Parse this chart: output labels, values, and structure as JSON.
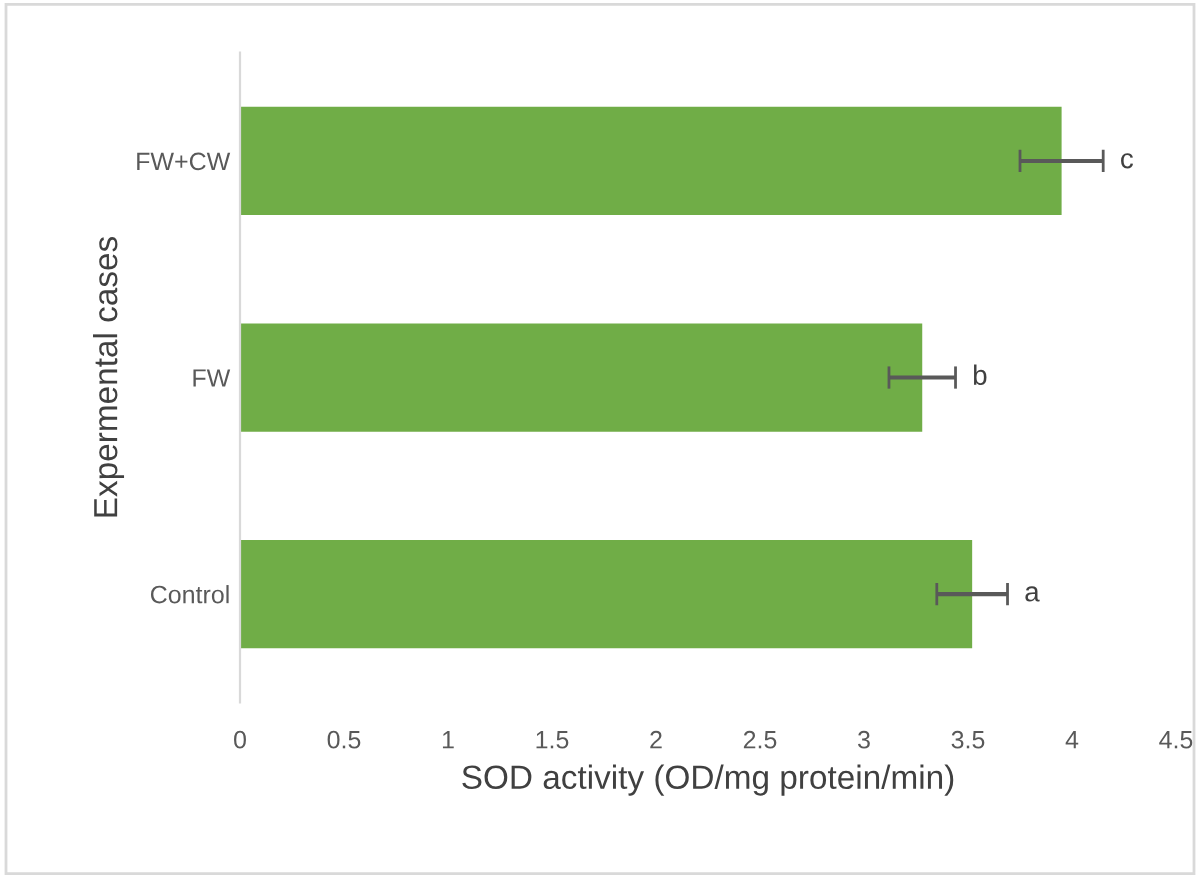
{
  "chart_data": {
    "type": "bar",
    "orientation": "horizontal",
    "categories": [
      "FW+CW",
      "FW",
      "Control"
    ],
    "values": [
      3.95,
      3.28,
      3.52
    ],
    "errors": [
      0.2,
      0.16,
      0.17
    ],
    "color": "#70ad47",
    "xlim": [
      0,
      4.5
    ],
    "xticks": [
      0,
      0.5,
      1,
      1.5,
      2,
      2.5,
      3,
      3.5,
      4,
      4.5
    ],
    "xlabel": "SOD activity (OD/mg protein/min)",
    "ylabel": "Expermental cases",
    "grid": false,
    "legend": false,
    "annotations": [
      "c",
      "b",
      "a"
    ]
  }
}
